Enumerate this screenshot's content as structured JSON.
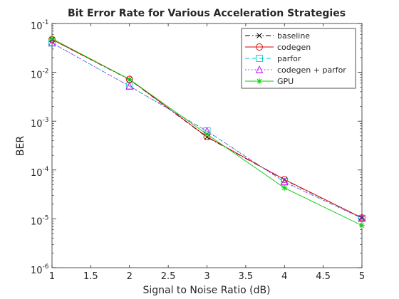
{
  "chart_data": {
    "type": "line",
    "title": "Bit Error Rate for Various Acceleration Strategies",
    "xlabel": "Signal to Noise Ratio (dB)",
    "ylabel": "BER",
    "xlim": [
      1,
      5
    ],
    "ylim": [
      1e-06,
      0.1
    ],
    "yscale": "log",
    "grid": false,
    "legend_position": "top-right",
    "x_ticks": [
      "1",
      "1.5",
      "2",
      "2.5",
      "3",
      "3.5",
      "4",
      "4.5",
      "5"
    ],
    "y_ticks": [
      {
        "base": "10",
        "exp": "-1"
      },
      {
        "base": "10",
        "exp": "-2"
      },
      {
        "base": "10",
        "exp": "-3"
      },
      {
        "base": "10",
        "exp": "-4"
      },
      {
        "base": "10",
        "exp": "-5"
      },
      {
        "base": "10",
        "exp": "-6"
      }
    ],
    "x": [
      1,
      2,
      3,
      4,
      5
    ],
    "series": [
      {
        "name": "baseline",
        "color": "#000000",
        "dash": "dashdot",
        "marker": "x",
        "values": [
          0.047,
          0.0071,
          0.00047,
          6.3e-05,
          1.05e-05
        ]
      },
      {
        "name": "codegen",
        "color": "#e00000",
        "dash": "solid",
        "marker": "circle",
        "values": [
          0.047,
          0.0072,
          0.00048,
          6.4e-05,
          1.05e-05
        ]
      },
      {
        "name": "parfor",
        "color": "#00c8c8",
        "dash": "dashed",
        "marker": "square",
        "values": [
          0.04,
          0.0052,
          0.00063,
          5.7e-05,
          1.02e-05
        ]
      },
      {
        "name": "codegen + parfor",
        "color": "#c000ff",
        "dash": "dotted",
        "marker": "triangle",
        "values": [
          0.04,
          0.0052,
          0.00062,
          5.7e-05,
          1.03e-05
        ]
      },
      {
        "name": "GPU",
        "color": "#00cc00",
        "dash": "solid",
        "marker": "star",
        "values": [
          0.049,
          0.0072,
          0.00054,
          4.3e-05,
          7.3e-06
        ]
      }
    ]
  }
}
